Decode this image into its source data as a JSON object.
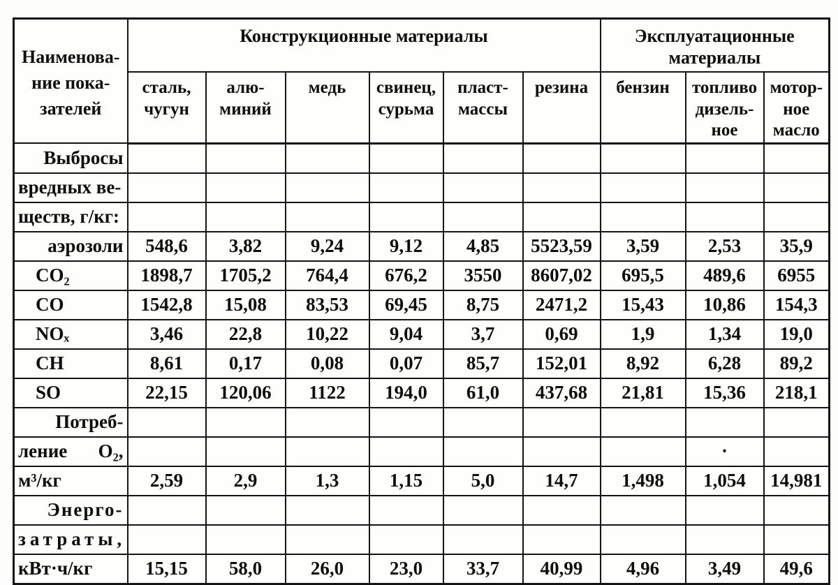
{
  "table": {
    "corner_label": "Наименова-\nние пока-\nзателей",
    "groups": [
      {
        "label": "Конструкционные материалы",
        "span": 6
      },
      {
        "label": "Эксплуатационные\nматериалы",
        "span": 3
      }
    ],
    "columns": [
      "сталь,\nчугун",
      "алю-\nминий",
      "медь",
      "свинец,\nсурьма",
      "пласт-\nмассы",
      "резина",
      "бензин",
      "топливо\nдизель-\nное",
      "мотор-\nное\nмасло"
    ],
    "rows": [
      {
        "label": "Выбросы",
        "style": "right",
        "values": [
          null,
          null,
          null,
          null,
          null,
          null,
          null,
          null,
          null
        ]
      },
      {
        "label": "вредных ве-",
        "style": "left",
        "values": [
          null,
          null,
          null,
          null,
          null,
          null,
          null,
          null,
          null
        ]
      },
      {
        "label": "ществ, г/кг:",
        "style": "left",
        "values": [
          null,
          null,
          null,
          null,
          null,
          null,
          null,
          null,
          null
        ]
      },
      {
        "label": "аэрозоли",
        "style": "right",
        "values": [
          "548,6",
          "3,82",
          "9,24",
          "9,12",
          "4,85",
          "5523,59",
          "3,59",
          "2,53",
          "35,9"
        ]
      },
      {
        "label": "CO₂",
        "style": "indent",
        "values": [
          "1898,7",
          "1705,2",
          "764,4",
          "676,2",
          "3550",
          "8607,02",
          "695,5",
          "489,6",
          "6955"
        ]
      },
      {
        "label": "CO",
        "style": "indent",
        "values": [
          "1542,8",
          "15,08",
          "83,53",
          "69,45",
          "8,75",
          "2471,2",
          "15,43",
          "10,86",
          "154,3"
        ]
      },
      {
        "label": "NOₓ",
        "style": "indent",
        "values": [
          "3,46",
          "22,8",
          "10,22",
          "9,04",
          "3,7",
          "0,69",
          "1,9",
          "1,34",
          "19,0"
        ]
      },
      {
        "label": "CH",
        "style": "indent",
        "values": [
          "8,61",
          "0,17",
          "0,08",
          "0,07",
          "85,7",
          "152,01",
          "8,92",
          "6,28",
          "89,2"
        ]
      },
      {
        "label": "SO",
        "style": "indent",
        "values": [
          "22,15",
          "120,06",
          "1122",
          "194,0",
          "61,0",
          "437,68",
          "21,81",
          "15,36",
          "218,1"
        ]
      },
      {
        "label": "Потреб-",
        "style": "right",
        "values": [
          null,
          null,
          null,
          null,
          null,
          null,
          null,
          null,
          null
        ]
      },
      {
        "label": "ление О₂,",
        "style": "justify",
        "values": [
          null,
          null,
          null,
          null,
          null,
          null,
          null,
          "·",
          null
        ]
      },
      {
        "label": "м³/кг",
        "style": "left",
        "values": [
          "2,59",
          "2,9",
          "1,3",
          "1,15",
          "5,0",
          "14,7",
          "1,498",
          "1,054",
          "14,981"
        ]
      },
      {
        "label": "Энерго-",
        "style": "right sp1",
        "values": [
          null,
          null,
          null,
          null,
          null,
          null,
          null,
          null,
          null
        ]
      },
      {
        "label": "затраты,",
        "style": "left sp2",
        "values": [
          null,
          null,
          null,
          null,
          null,
          null,
          null,
          null,
          null
        ]
      },
      {
        "label": "кВт·ч/кг",
        "style": "left",
        "values": [
          "15,15",
          "58,0",
          "26,0",
          "23,0",
          "33,7",
          "40,99",
          "4,96",
          "3,49",
          "49,6"
        ]
      }
    ]
  }
}
